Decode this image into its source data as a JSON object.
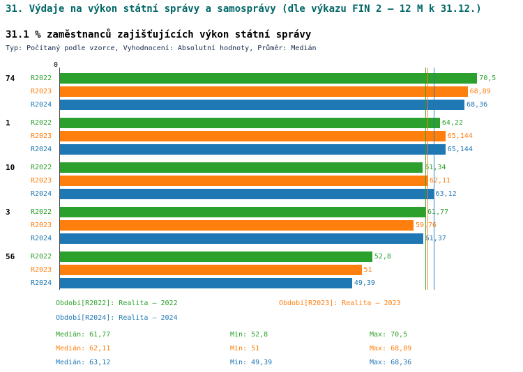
{
  "header": {
    "title": "31. Výdaje na výkon státní správy a samosprávy (dle výkazu FIN 2 – 12 M k 31.12.)",
    "subtitle": "31.1 % zaměstnanců zajišťujících výkon státní správy",
    "meta": "Typ: Počítaný podle vzorce, Vyhodnocení: Absolutní hodnoty, Průměr: Medián"
  },
  "chart_data": {
    "type": "bar",
    "orientation": "horizontal",
    "axis_zero_label": "0",
    "xlim": [
      0,
      74
    ],
    "grid": false,
    "categories": [
      "74",
      "1",
      "10",
      "3",
      "56"
    ],
    "series": [
      {
        "name": "R2022",
        "color": "#2ca02c",
        "values": [
          70.5,
          64.22,
          61.34,
          61.77,
          52.8
        ],
        "labels": [
          "70,5",
          "64,22",
          "61,34",
          "61,77",
          "52,8"
        ]
      },
      {
        "name": "R2023",
        "color": "#ff7f0e",
        "values": [
          68.89,
          65.144,
          62.11,
          59.76,
          51
        ],
        "labels": [
          "68,89",
          "65,144",
          "62,11",
          "59,76",
          "51"
        ]
      },
      {
        "name": "R2024",
        "color": "#1f77b4",
        "values": [
          68.36,
          65.144,
          63.12,
          61.37,
          49.39
        ],
        "labels": [
          "68,36",
          "65,144",
          "63,12",
          "61,37",
          "49,39"
        ]
      }
    ],
    "medians": [
      61.77,
      62.11,
      63.12
    ],
    "median_note": "Medián per series shown as vertical lines"
  },
  "legend": {
    "items": [
      {
        "label": "Období[R2022]: Realita – 2022"
      },
      {
        "label": "Období[R2023]: Realita – 2023"
      },
      {
        "label": "Období[R2024]: Realita – 2024"
      }
    ]
  },
  "stats": {
    "rows": [
      {
        "median": "Medián: 61,77",
        "min": "Min: 52,8",
        "max": "Max: 70,5"
      },
      {
        "median": "Medián: 62,11",
        "min": "Min: 51",
        "max": "Max: 68,89"
      },
      {
        "median": "Medián: 63,12",
        "min": "Min: 49,39",
        "max": "Max: 68,36"
      }
    ]
  }
}
